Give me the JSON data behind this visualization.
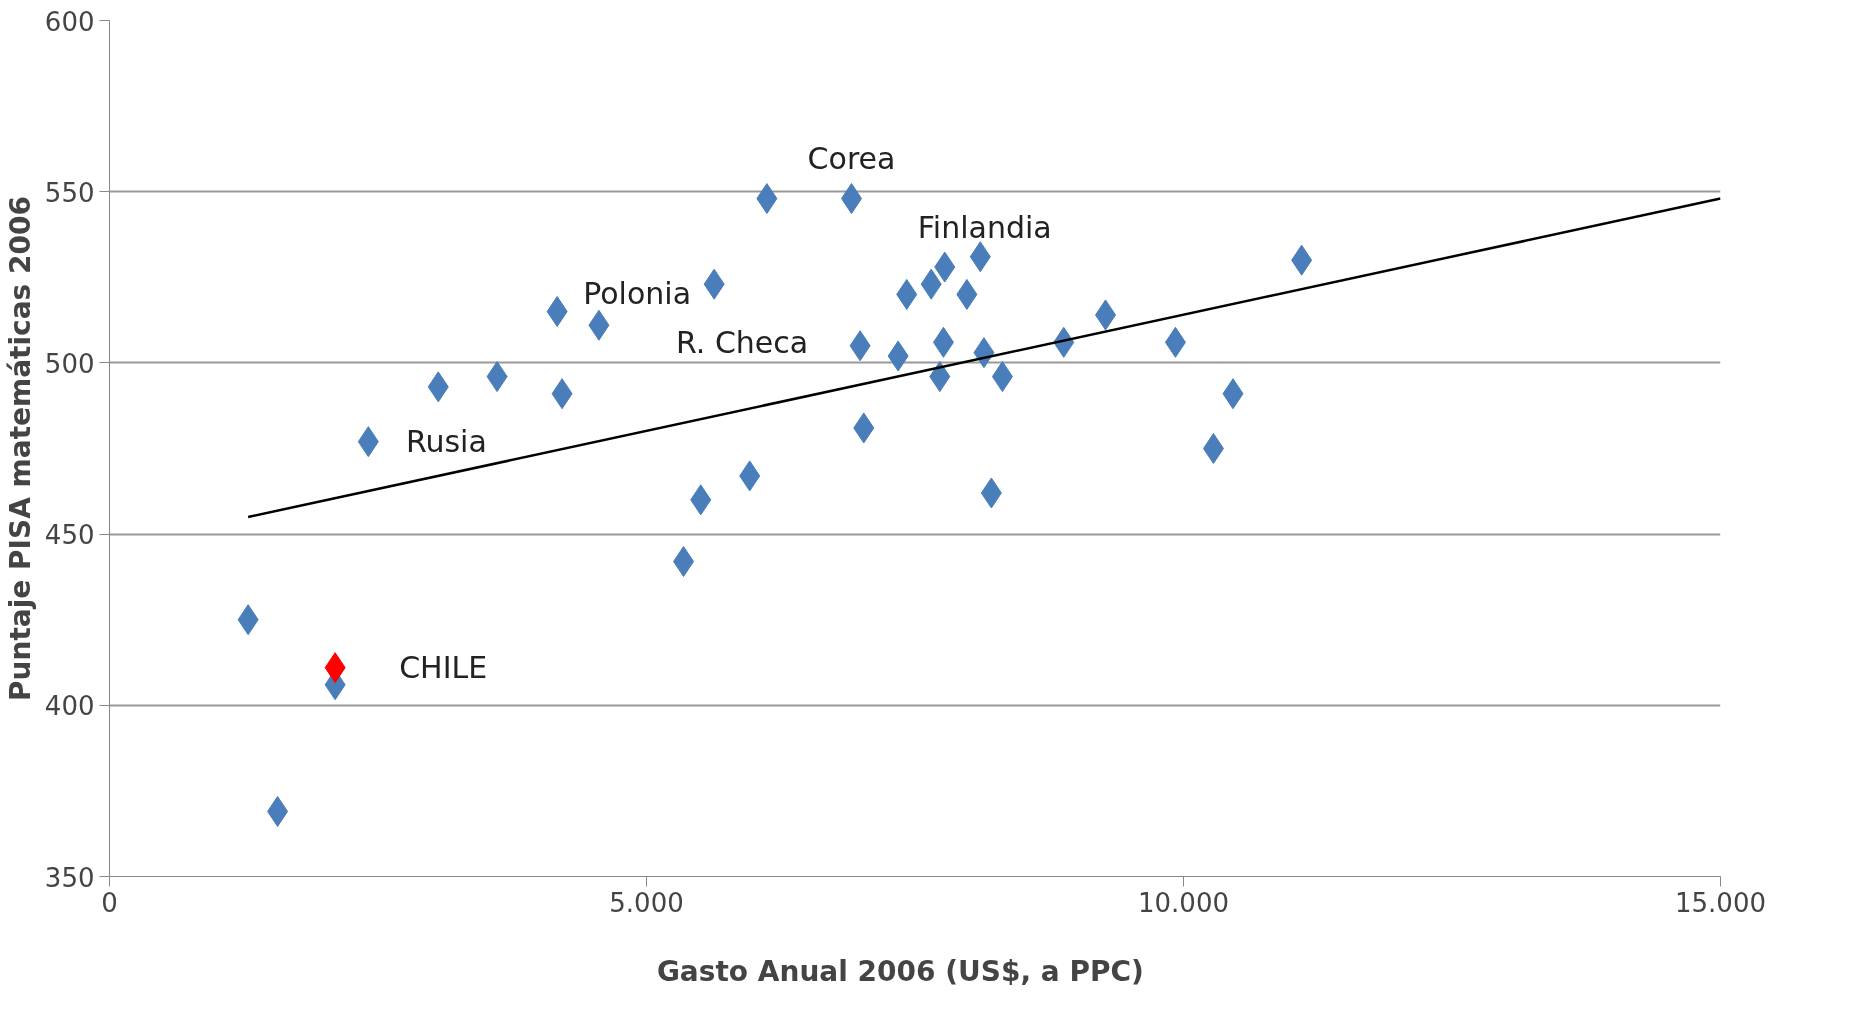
{
  "chart_data": {
    "type": "scatter",
    "xlabel": "Gasto Anual  2006  (US$, a  PPC)",
    "ylabel": "Puntaje PISA matemáticas 2006",
    "marker": "diamond",
    "grid": "y",
    "xlim": [
      0,
      15000
    ],
    "ylim": [
      350,
      600
    ],
    "xticks": [
      0,
      {
        "value": 5000,
        "label": "5.000"
      },
      {
        "value": 10000,
        "label": "10.000"
      },
      {
        "value": 15000,
        "label": "15.000"
      }
    ],
    "yticks": [
      350,
      400,
      450,
      500,
      550,
      600
    ],
    "series": [
      {
        "color": "#4a7ebb",
        "x": [
          1291,
          1565,
          2101,
          2410,
          3061,
          3609,
          4168,
          4214,
          4557,
          5345,
          5505,
          5630,
          5961,
          6121,
          6909,
          6989,
          7023,
          7343,
          7423,
          7651,
          7777,
          7731,
          7765,
          7983,
          8108,
          8142,
          8211,
          8314,
          8885,
          9274,
          9925,
          10279,
          10461,
          11100
        ],
        "values": [
          425,
          369,
          406,
          477,
          493,
          496,
          515,
          491,
          511,
          442,
          460,
          523,
          467,
          548,
          548,
          505,
          481,
          502,
          520,
          523,
          528,
          496,
          506,
          520,
          531,
          503,
          462,
          496,
          506,
          514,
          506,
          475,
          491,
          530
        ]
      },
      {
        "color": "#ff0000",
        "x": [
          2101
        ],
        "values": [
          411
        ]
      },
      {
        "type": "line",
        "color": "#000000",
        "marker": "none",
        "x": [
          1291,
          15000
        ],
        "values": [
          455,
          548
        ]
      }
    ],
    "annotations": [
      {
        "text": "Corea",
        "x": 6909,
        "y": 548
      },
      {
        "text": "Finlandia",
        "x": 7777,
        "y": 528
      },
      {
        "text": "Polonia",
        "x": 4168,
        "y": 515
      },
      {
        "text": "R. Checa",
        "x": 6989,
        "y": 505
      },
      {
        "text": "Rusia",
        "x": 2410,
        "y": 477
      },
      {
        "text": "CHILE",
        "x": 2101,
        "y": 411
      }
    ]
  }
}
